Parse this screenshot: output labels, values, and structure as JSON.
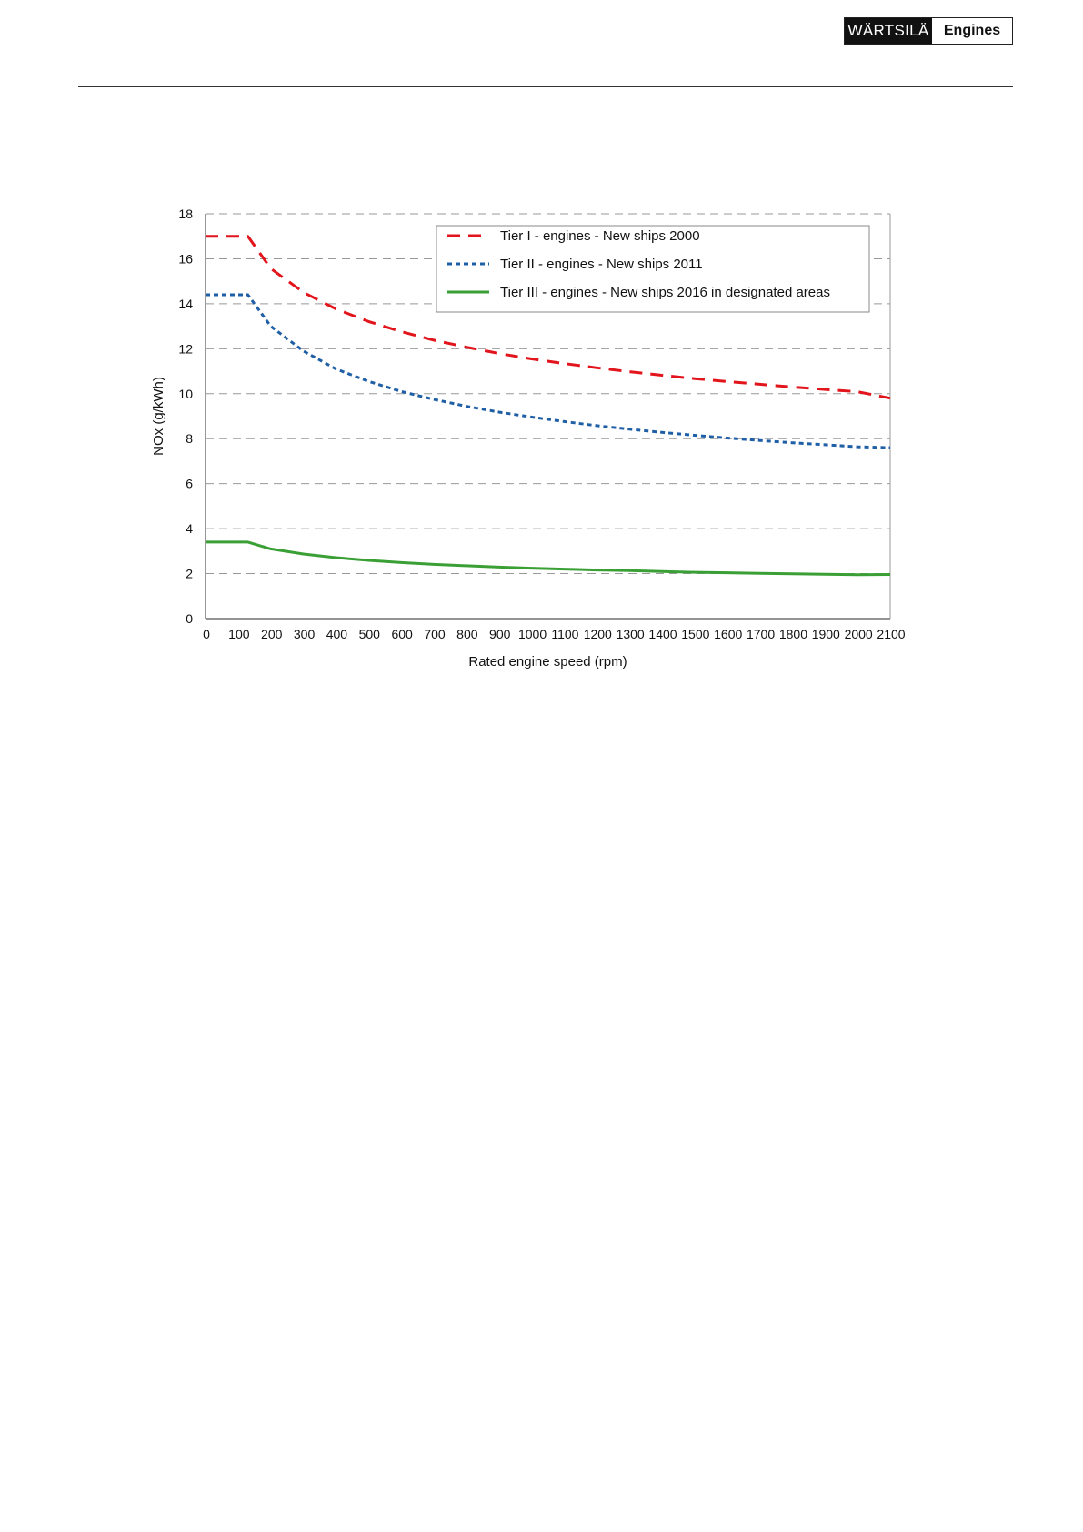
{
  "header": {
    "brand": "WÄRTSILÄ",
    "product": "Engines"
  },
  "colors": {
    "tier1": "#e2141c",
    "tier2": "#1f5fa6",
    "tier3": "#3aa035",
    "grid": "#999999"
  },
  "chart_data": {
    "type": "line",
    "title": "",
    "xlabel": "Rated engine speed (rpm)",
    "ylabel": "NOx (g/kWh)",
    "xlim": [
      0,
      2100
    ],
    "ylim": [
      0,
      18
    ],
    "x_ticks": [
      0,
      100,
      200,
      300,
      400,
      500,
      600,
      700,
      800,
      900,
      1000,
      1100,
      1200,
      1300,
      1400,
      1500,
      1600,
      1700,
      1800,
      1900,
      2000,
      2100
    ],
    "y_ticks": [
      0,
      2,
      4,
      6,
      8,
      10,
      12,
      14,
      16,
      18
    ],
    "grid": "horizontal dashed",
    "legend_position": "top-right",
    "series": [
      {
        "name": "Tier I - engines - New ships 2000",
        "style": "dashed",
        "x": [
          0,
          130,
          200,
          300,
          400,
          500,
          600,
          700,
          800,
          900,
          1000,
          1100,
          1200,
          1300,
          1400,
          1500,
          1600,
          1700,
          1800,
          1900,
          2000,
          2100
        ],
        "values": [
          17.0,
          17.0,
          15.57,
          14.51,
          13.77,
          13.21,
          12.76,
          12.38,
          12.07,
          11.79,
          11.55,
          11.34,
          11.15,
          10.98,
          10.82,
          10.67,
          10.54,
          10.42,
          10.3,
          10.19,
          10.09,
          9.8
        ]
      },
      {
        "name": "Tier II - engines - New ships 2011",
        "style": "dotted",
        "x": [
          0,
          130,
          200,
          300,
          400,
          500,
          600,
          700,
          800,
          900,
          1000,
          1100,
          1200,
          1300,
          1400,
          1500,
          1600,
          1700,
          1800,
          1900,
          2000,
          2100
        ],
        "values": [
          14.4,
          14.4,
          13.0,
          11.9,
          11.1,
          10.55,
          10.1,
          9.75,
          9.44,
          9.18,
          8.96,
          8.76,
          8.58,
          8.42,
          8.28,
          8.15,
          8.03,
          7.92,
          7.82,
          7.73,
          7.64,
          7.6
        ]
      },
      {
        "name": "Tier III - engines - New ships 2016 in designated areas",
        "style": "solid",
        "x": [
          0,
          130,
          200,
          300,
          400,
          500,
          600,
          700,
          800,
          900,
          1000,
          1100,
          1200,
          1300,
          1400,
          1500,
          1600,
          1700,
          1800,
          1900,
          2000,
          2100
        ],
        "values": [
          3.4,
          3.4,
          3.1,
          2.87,
          2.71,
          2.59,
          2.49,
          2.41,
          2.35,
          2.29,
          2.24,
          2.2,
          2.16,
          2.13,
          2.09,
          2.06,
          2.04,
          2.01,
          1.99,
          1.97,
          1.95,
          1.96
        ]
      }
    ]
  }
}
